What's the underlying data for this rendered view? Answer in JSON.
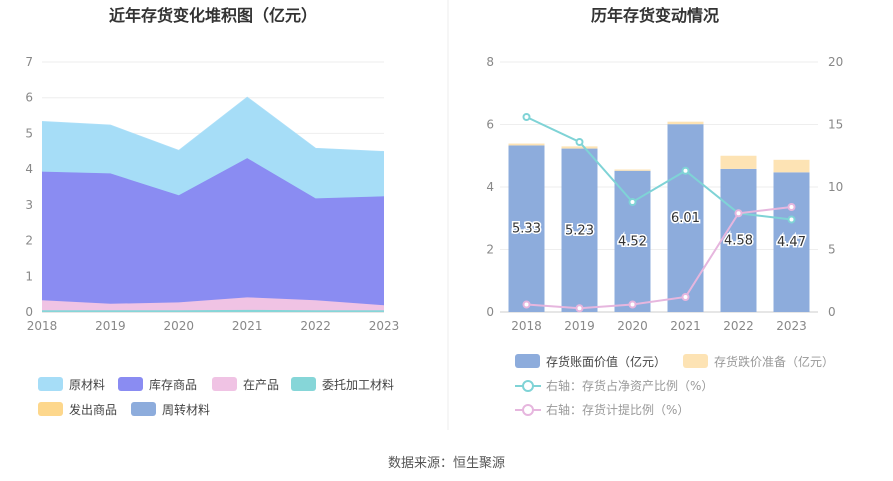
{
  "source_text": "数据来源：恒生聚源",
  "chart_data": [
    {
      "type": "area",
      "title": "近年存货变化堆积图（亿元）",
      "x": [
        "2018",
        "2019",
        "2020",
        "2021",
        "2022",
        "2023"
      ],
      "ylim": [
        0,
        7
      ],
      "yticks": [
        "0",
        "1",
        "2",
        "3",
        "4",
        "5",
        "6",
        "7"
      ],
      "stacked": true,
      "grid": true,
      "legend_position": "bottom",
      "series": [
        {
          "name": "原材料",
          "color": "#a6ddf7",
          "values": [
            1.4,
            1.35,
            1.25,
            1.7,
            1.4,
            1.25
          ]
        },
        {
          "name": "库存商品",
          "color": "#8a8cf2",
          "values": [
            3.6,
            3.65,
            3.0,
            3.9,
            2.85,
            3.05
          ]
        },
        {
          "name": "在产品",
          "color": "#f0c3e4",
          "values": [
            0.28,
            0.18,
            0.22,
            0.35,
            0.28,
            0.14
          ]
        },
        {
          "name": "委托加工材料",
          "color": "#86d6d8",
          "values": [
            0.05,
            0.05,
            0.05,
            0.06,
            0.05,
            0.05
          ]
        },
        {
          "name": "发出商品",
          "color": "#fdd78c",
          "values": [
            0,
            0,
            0,
            0,
            0,
            0
          ]
        },
        {
          "name": "周转材料",
          "color": "#8dacdc",
          "values": [
            0,
            0,
            0,
            0,
            0,
            0
          ]
        }
      ]
    },
    {
      "type": "bar",
      "title": "历年存货变动情况",
      "categories": [
        "2018",
        "2019",
        "2020",
        "2021",
        "2022",
        "2023"
      ],
      "ylim": [
        0,
        8
      ],
      "yticks": [
        "0",
        "2",
        "4",
        "6",
        "8"
      ],
      "y2lim": [
        0,
        20
      ],
      "y2ticks": [
        "0",
        "5",
        "10",
        "15",
        "20"
      ],
      "grid": true,
      "legend_position": "bottom",
      "series": [
        {
          "name": "存货账面价值（亿元）",
          "kind": "bar",
          "axis": "left",
          "color": "#8dacdc",
          "values": [
            5.33,
            5.23,
            4.52,
            6.01,
            4.58,
            4.47
          ],
          "labels": [
            "5.33",
            "5.23",
            "4.52",
            "6.01",
            "4.58",
            "4.47"
          ]
        },
        {
          "name": "存货跌价准备（亿元）",
          "kind": "bar",
          "axis": "left",
          "color": "#fde3b4",
          "values": [
            0.06,
            0.07,
            0.04,
            0.08,
            0.42,
            0.4
          ]
        },
        {
          "name": "右轴：存货占净资产比例（%）",
          "kind": "line",
          "axis": "right",
          "color": "#7fd3d6",
          "values": [
            15.6,
            13.6,
            8.8,
            11.3,
            7.9,
            7.4
          ]
        },
        {
          "name": "右轴：存货计提比例（%）",
          "kind": "line",
          "axis": "right",
          "color": "#e6b6de",
          "values": [
            0.6,
            0.3,
            0.6,
            1.2,
            7.9,
            8.4
          ]
        }
      ]
    }
  ]
}
